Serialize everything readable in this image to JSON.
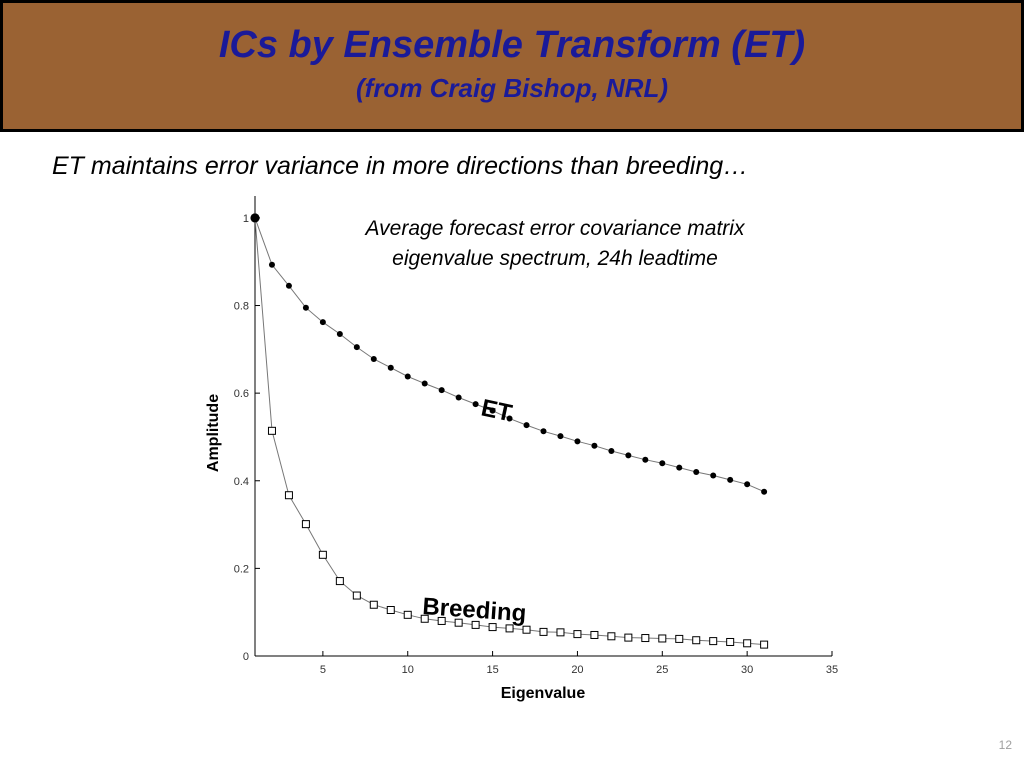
{
  "slide": {
    "title": "ICs by Ensemble Transform (ET)",
    "subtitle": "(from Craig Bishop, NRL)",
    "subheading": "ET maintains error variance in more directions than breeding…",
    "page_number": "12",
    "colors": {
      "banner": "#9a6233",
      "title_text": "#1a1a99"
    }
  },
  "chart_data": {
    "type": "line",
    "title_lines": [
      "Average forecast error covariance matrix",
      "eigenvalue spectrum, 24h leadtime"
    ],
    "xlabel": "Eigenvalue",
    "ylabel": "Amplitude",
    "xlim": [
      1,
      35
    ],
    "ylim": [
      0,
      1.05
    ],
    "xticks": [
      5,
      10,
      15,
      20,
      25,
      30,
      35
    ],
    "yticks": [
      0,
      0.2,
      0.4,
      0.6,
      0.8,
      1
    ],
    "ytick_labels": [
      "0",
      "0.2",
      "0.4",
      "0.6",
      "0.8",
      "1"
    ],
    "grid": false,
    "x": [
      1,
      2,
      3,
      4,
      5,
      6,
      7,
      8,
      9,
      10,
      11,
      12,
      13,
      14,
      15,
      16,
      17,
      18,
      19,
      20,
      21,
      22,
      23,
      24,
      25,
      26,
      27,
      28,
      29,
      30,
      31
    ],
    "series": [
      {
        "name": "ET",
        "marker": "filled-dot",
        "values": [
          1.0,
          0.893,
          0.845,
          0.795,
          0.762,
          0.735,
          0.705,
          0.678,
          0.658,
          0.638,
          0.622,
          0.607,
          0.59,
          0.575,
          0.56,
          0.542,
          0.527,
          0.513,
          0.502,
          0.49,
          0.48,
          0.468,
          0.458,
          0.448,
          0.44,
          0.43,
          0.42,
          0.412,
          0.402,
          0.392,
          0.375
        ]
      },
      {
        "name": "Breeding",
        "marker": "open-square",
        "values": [
          1.0,
          0.514,
          0.367,
          0.301,
          0.231,
          0.171,
          0.138,
          0.117,
          0.105,
          0.094,
          0.085,
          0.08,
          0.076,
          0.071,
          0.066,
          0.063,
          0.06,
          0.055,
          0.054,
          0.05,
          0.048,
          0.045,
          0.042,
          0.041,
          0.04,
          0.039,
          0.036,
          0.034,
          0.032,
          0.029,
          0.026
        ]
      }
    ],
    "annotations": [
      "ET",
      "Breeding"
    ]
  }
}
